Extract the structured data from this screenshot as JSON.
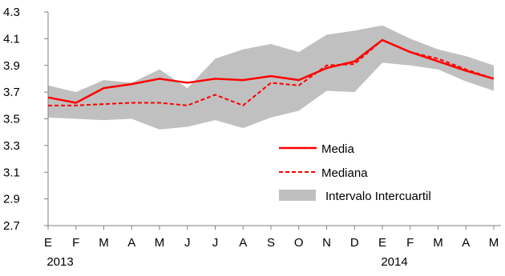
{
  "chart_data": {
    "type": "line",
    "categories": [
      "E",
      "F",
      "M",
      "A",
      "M",
      "J",
      "J",
      "A",
      "S",
      "O",
      "N",
      "D",
      "E",
      "F",
      "M",
      "A",
      "M"
    ],
    "year_labels": [
      {
        "index": 0,
        "label": "2013"
      },
      {
        "index": 12,
        "label": "2014"
      }
    ],
    "ylim": [
      2.7,
      4.3
    ],
    "yticks": [
      2.7,
      2.9,
      3.1,
      3.3,
      3.5,
      3.7,
      3.9,
      4.1,
      4.3
    ],
    "ytick_labels": [
      "2.7",
      "2.9",
      "3.1",
      "3.3",
      "3.5",
      "3.7",
      "3.9",
      "4.1",
      "4.3"
    ],
    "grid": false,
    "legend_position": "lower-right inside",
    "series": [
      {
        "name": "Media",
        "style": "solid",
        "color": "#ff0000",
        "values": [
          3.66,
          3.62,
          3.73,
          3.76,
          3.8,
          3.77,
          3.8,
          3.79,
          3.82,
          3.79,
          3.88,
          3.93,
          4.09,
          4.0,
          3.93,
          3.86,
          3.8
        ]
      },
      {
        "name": "Mediana",
        "style": "dashed",
        "color": "#ff0000",
        "values": [
          3.6,
          3.6,
          3.61,
          3.62,
          3.62,
          3.6,
          3.68,
          3.6,
          3.77,
          3.75,
          3.9,
          3.91,
          4.09,
          4.0,
          3.95,
          3.87,
          3.8
        ]
      }
    ],
    "band": {
      "name": "Intervalo Intercuartil",
      "color": "#c0c0c0",
      "lower": [
        3.51,
        3.5,
        3.49,
        3.5,
        3.42,
        3.44,
        3.49,
        3.43,
        3.51,
        3.56,
        3.71,
        3.7,
        3.92,
        3.9,
        3.87,
        3.78,
        3.71
      ],
      "upper": [
        3.75,
        3.7,
        3.79,
        3.77,
        3.87,
        3.73,
        3.95,
        4.02,
        4.06,
        4.0,
        4.13,
        4.16,
        4.2,
        4.1,
        4.02,
        3.97,
        3.9
      ]
    },
    "legend": [
      {
        "label": "Media",
        "kind": "line-solid"
      },
      {
        "label": "Mediana",
        "kind": "line-dashed"
      },
      {
        "label": "Intervalo Intercuartil",
        "kind": "band"
      }
    ]
  }
}
